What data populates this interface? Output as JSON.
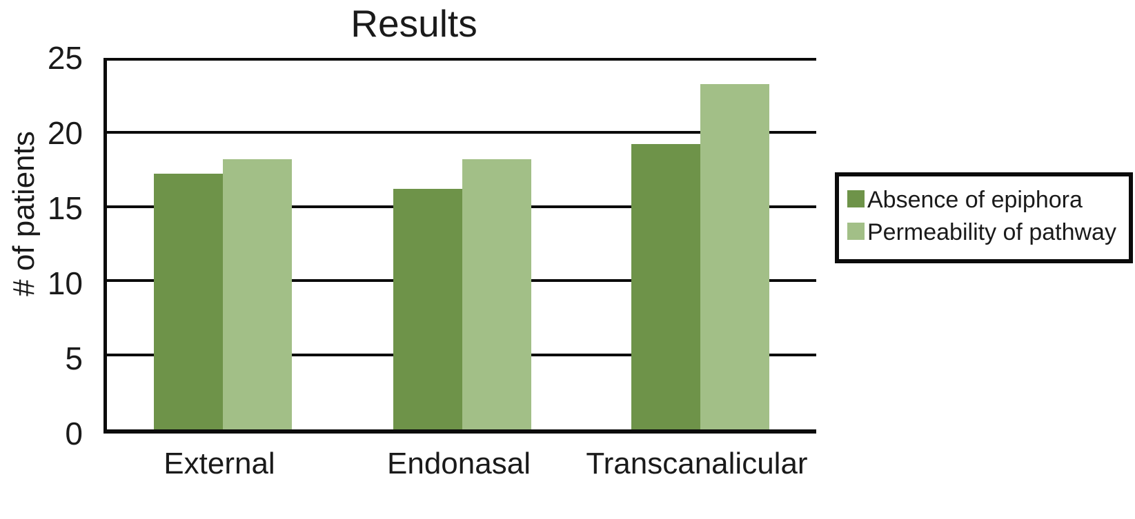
{
  "chart_data": {
    "type": "bar",
    "title": "Results",
    "xlabel": "",
    "ylabel": "# of patients",
    "categories": [
      "External",
      "Endonasal",
      "Transcanalicular"
    ],
    "series": [
      {
        "name": "Absence of epiphora",
        "color": "#6E9349",
        "values": [
          17,
          16,
          19
        ]
      },
      {
        "name": "Permeability of pathway",
        "color": "#A2BF87",
        "values": [
          18,
          18,
          23
        ]
      }
    ],
    "ylim": [
      0,
      25
    ],
    "yticks": [
      0,
      5,
      10,
      15,
      20,
      25
    ],
    "grid": true,
    "grid_color": "#0b0b0b",
    "background_color": "#ffffff",
    "legend_position": "right",
    "legend_border_color": "#0b0b0b"
  }
}
